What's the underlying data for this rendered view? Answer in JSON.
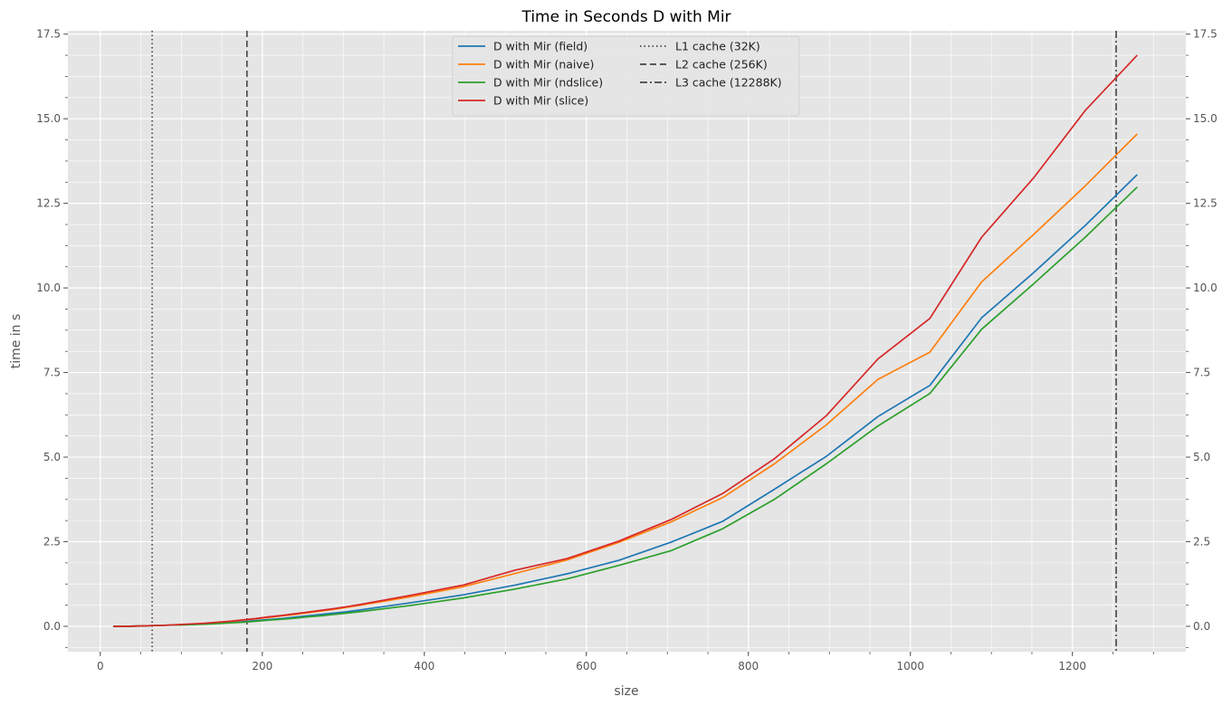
{
  "chart_data": {
    "type": "line",
    "title": "Time in Seconds D with Mir",
    "xlabel": "size",
    "ylabel": "time in s",
    "xlim": [
      -40,
      1340
    ],
    "ylim": [
      -0.75,
      17.6
    ],
    "x_ticks": [
      0,
      200,
      400,
      600,
      800,
      1000,
      1200
    ],
    "x_tick_labels": [
      "0",
      "200",
      "400",
      "600",
      "800",
      "1000",
      "1200"
    ],
    "y_ticks": [
      0,
      2.5,
      5,
      7.5,
      10,
      12.5,
      15,
      17.5
    ],
    "y_tick_labels": [
      "0.0",
      "2.5",
      "5.0",
      "7.5",
      "10.0",
      "12.5",
      "15.0",
      "17.5"
    ],
    "grid": true,
    "legend_placement": "upper-center",
    "x": [
      16,
      32,
      48,
      64,
      80,
      96,
      112,
      128,
      144,
      160,
      176,
      192,
      208,
      224,
      240,
      256,
      272,
      288,
      304,
      320,
      384,
      448,
      512,
      576,
      640,
      704,
      768,
      832,
      896,
      960,
      1024,
      1088,
      1152,
      1216,
      1280
    ],
    "series": [
      {
        "name": "D with Mir (field)",
        "color": "#1f77b4",
        "values": [
          0.0,
          0.0,
          0.01,
          0.02,
          0.03,
          0.04,
          0.05,
          0.07,
          0.09,
          0.11,
          0.14,
          0.17,
          0.2,
          0.23,
          0.27,
          0.31,
          0.35,
          0.39,
          0.43,
          0.48,
          0.7,
          0.93,
          1.22,
          1.55,
          1.95,
          2.48,
          3.1,
          4.05,
          5.02,
          6.2,
          7.12,
          9.12,
          10.45,
          11.85,
          13.35
        ]
      },
      {
        "name": "D with Mir (naive)",
        "color": "#ff7f0e",
        "values": [
          0.0,
          0.0,
          0.01,
          0.02,
          0.03,
          0.05,
          0.06,
          0.08,
          0.11,
          0.14,
          0.18,
          0.22,
          0.26,
          0.31,
          0.35,
          0.4,
          0.45,
          0.5,
          0.56,
          0.62,
          0.88,
          1.17,
          1.56,
          1.96,
          2.48,
          3.08,
          3.8,
          4.8,
          5.95,
          7.3,
          8.1,
          10.18,
          11.58,
          13.02,
          14.55
        ]
      },
      {
        "name": "D with Mir (ndslice)",
        "color": "#2ca02c",
        "values": [
          0.0,
          0.0,
          0.01,
          0.02,
          0.03,
          0.04,
          0.05,
          0.06,
          0.08,
          0.1,
          0.12,
          0.15,
          0.18,
          0.21,
          0.24,
          0.28,
          0.31,
          0.35,
          0.39,
          0.43,
          0.62,
          0.84,
          1.1,
          1.4,
          1.8,
          2.23,
          2.88,
          3.75,
          4.8,
          5.92,
          6.88,
          8.78,
          10.12,
          11.5,
          12.98
        ]
      },
      {
        "name": "D with Mir (slice)",
        "color": "#d62728",
        "values": [
          0.0,
          0.0,
          0.01,
          0.02,
          0.03,
          0.05,
          0.07,
          0.09,
          0.12,
          0.15,
          0.19,
          0.23,
          0.28,
          0.32,
          0.37,
          0.42,
          0.47,
          0.52,
          0.58,
          0.64,
          0.92,
          1.22,
          1.66,
          2.0,
          2.52,
          3.15,
          3.92,
          4.95,
          6.22,
          7.9,
          9.1,
          11.5,
          13.25,
          15.25,
          16.88
        ]
      }
    ],
    "vlines": [
      {
        "name": "L1 cache (32K)",
        "x": 64,
        "style": "dotted",
        "color": "#444444"
      },
      {
        "name": "L2 cache (256K)",
        "x": 181,
        "style": "dashed",
        "color": "#444444"
      },
      {
        "name": "L3 cache (12288K)",
        "x": 1254,
        "style": "dashdot",
        "color": "#444444"
      }
    ]
  }
}
